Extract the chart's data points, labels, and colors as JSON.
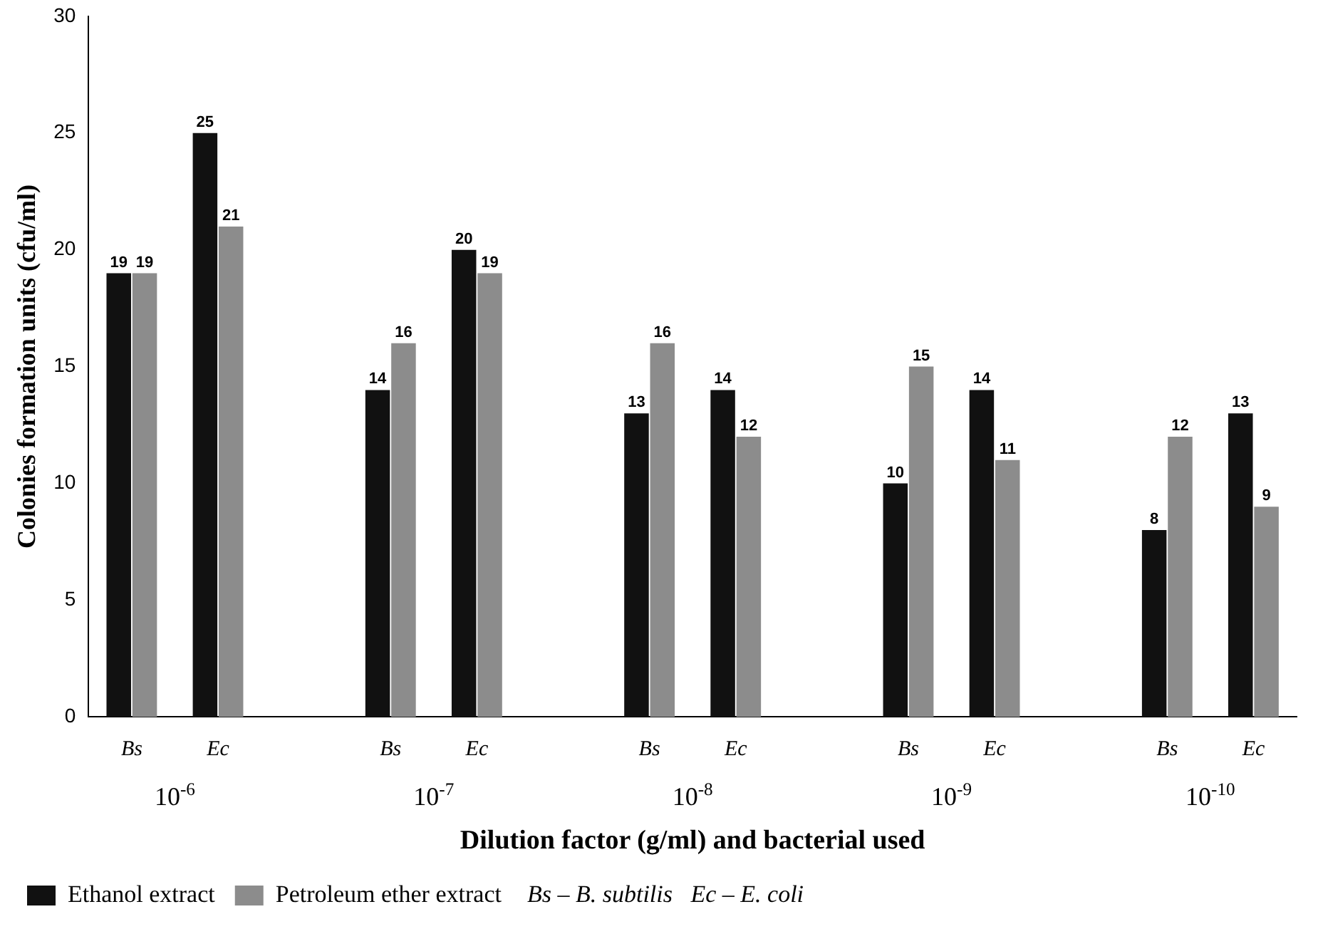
{
  "chart_data": {
    "type": "bar",
    "ylabel": "Colonies formation units (cfu/ml)",
    "xlabel": "Dilution factor (g/ml) and bacterial used",
    "categories": [
      "Bs",
      "Ec",
      null,
      "Bs",
      "Ec",
      null,
      "Bs",
      "Ec",
      null,
      "Bs",
      "Ec",
      null,
      "Bs",
      "Ec"
    ],
    "series": [
      {
        "name": "Ethanol extract",
        "color": "#111111",
        "values": [
          19,
          25,
          null,
          14,
          20,
          null,
          13,
          14,
          null,
          10,
          14,
          null,
          8,
          13
        ]
      },
      {
        "name": "Petroleum ether extract",
        "color": "#8c8c8c",
        "values": [
          19,
          21,
          null,
          16,
          19,
          null,
          16,
          12,
          null,
          15,
          11,
          null,
          12,
          9
        ]
      }
    ],
    "ylim": [
      0,
      30
    ],
    "yticks": [
      0,
      5,
      10,
      15,
      20,
      25,
      30
    ],
    "grid": false,
    "legend": "bottom",
    "data_labels": true,
    "annotations": [
      "10$^{-6}$",
      "10$^{-7}$",
      "10$^{-8}$",
      "10$^{-9}$",
      "10$^{-10}$",
      "Bs – B. subtilis   Ec – E. coli"
    ]
  }
}
